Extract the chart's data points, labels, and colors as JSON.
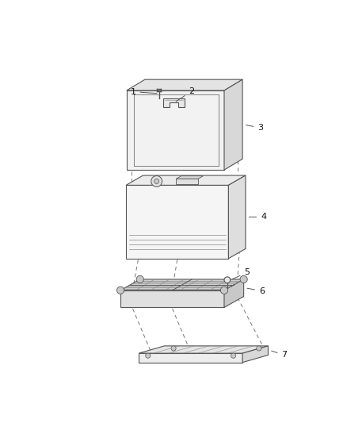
{
  "background_color": "#ffffff",
  "line_color": "#555555",
  "line_color_light": "#888888",
  "dash_color": "#777777",
  "label_color": "#111111",
  "label_fontsize": 8,
  "lw_main": 0.8,
  "lw_thin": 0.5
}
